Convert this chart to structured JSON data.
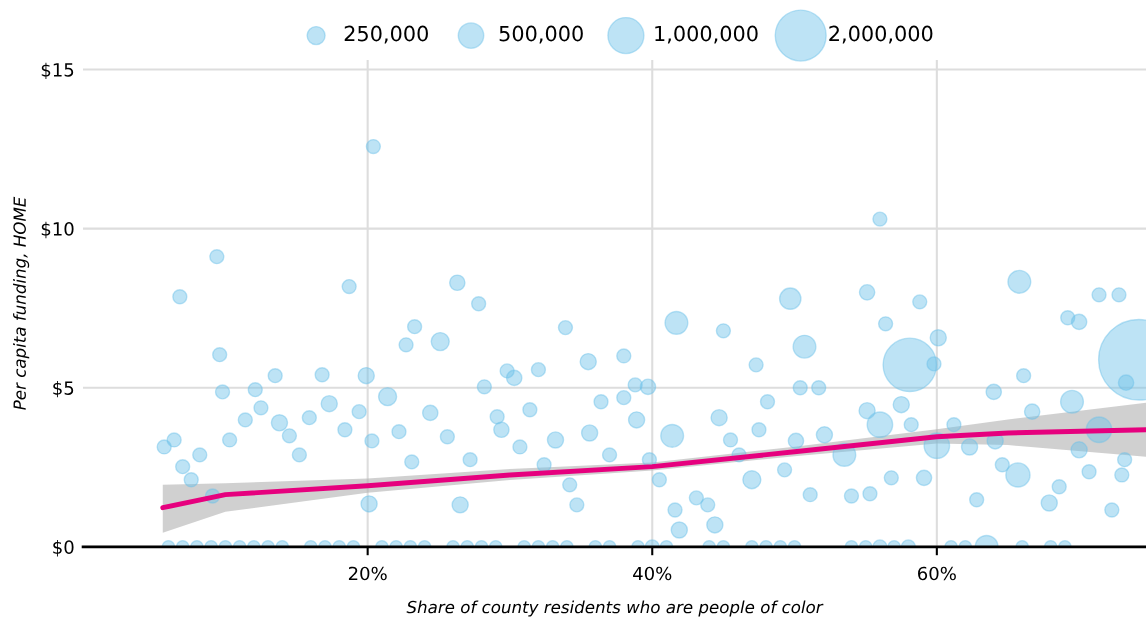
{
  "chart_data": {
    "type": "bubble",
    "xlabel": "Share of county residents who are people of color",
    "ylabel": "Per capita funding, HOME",
    "xlim": [
      0,
      74.7
    ],
    "ylim": [
      0,
      15.3
    ],
    "xticks": [
      {
        "value": 20,
        "label": "20%"
      },
      {
        "value": 40,
        "label": "40%"
      },
      {
        "value": 60,
        "label": "60%"
      }
    ],
    "yticks": [
      {
        "value": 0,
        "label": "$0"
      },
      {
        "value": 5,
        "label": "$5"
      },
      {
        "value": 10,
        "label": "$10"
      },
      {
        "value": 15,
        "label": "$15"
      }
    ],
    "grid": true,
    "size_legend": [
      {
        "value": 250000,
        "label": "250,000"
      },
      {
        "value": 500000,
        "label": "500,000"
      },
      {
        "value": 1000000,
        "label": "1,000,000"
      },
      {
        "value": 2000000,
        "label": "2,000,000"
      }
    ],
    "series": [
      {
        "color": "#6cc0e8",
        "x": [
          20.4,
          9.4,
          56.0,
          6.8,
          18.7,
          26.3,
          27.8,
          9.6,
          23.3,
          22.7,
          25.1,
          33.9,
          41.7,
          45.0,
          49.7,
          50.7,
          55.1,
          65.8,
          58.8,
          56.4,
          69.2,
          70.0,
          71.4,
          72.8,
          58.1,
          60.1,
          74.2,
          9.8,
          12.1,
          16.8,
          19.9,
          13.5,
          29.8,
          30.3,
          32.0,
          35.5,
          38.0,
          38.8,
          39.7,
          47.3,
          50.4,
          51.7,
          59.8,
          64.0,
          66.1,
          73.3,
          5.7,
          6.4,
          7.0,
          8.2,
          7.6,
          9.1,
          10.3,
          11.4,
          12.5,
          13.8,
          14.5,
          15.2,
          15.9,
          17.3,
          18.4,
          19.4,
          20.3,
          20.1,
          21.4,
          22.2,
          23.1,
          24.4,
          25.6,
          26.5,
          27.2,
          28.2,
          29.1,
          29.4,
          30.7,
          31.4,
          32.4,
          33.2,
          34.2,
          34.7,
          35.6,
          36.4,
          37.0,
          38.0,
          38.9,
          39.8,
          40.5,
          41.4,
          41.6,
          41.9,
          43.1,
          43.9,
          44.4,
          44.7,
          45.5,
          46.1,
          47.0,
          47.5,
          48.1,
          49.3,
          50.1,
          51.1,
          52.1,
          53.5,
          54.0,
          55.1,
          56.0,
          56.8,
          55.3,
          57.5,
          58.2,
          59.1,
          60.0,
          61.2,
          62.3,
          62.8,
          64.1,
          64.6,
          65.7,
          66.7,
          67.9,
          68.6,
          69.5,
          70.0,
          70.7,
          71.4,
          72.3,
          73.0,
          73.2,
          6,
          7,
          8,
          9,
          10,
          11,
          12,
          13,
          14,
          16,
          17,
          18,
          19,
          21,
          22,
          23,
          24,
          26,
          27,
          28,
          29,
          31,
          32,
          33,
          34,
          36,
          37,
          39,
          40,
          41,
          44,
          45,
          47,
          48,
          49,
          50,
          54,
          55,
          56,
          57,
          58,
          61,
          62,
          63.5,
          66,
          68,
          69
        ],
        "values": [
          12.58,
          9.12,
          10.3,
          7.86,
          8.18,
          8.3,
          7.64,
          6.04,
          6.92,
          6.35,
          6.45,
          6.89,
          7.04,
          6.79,
          7.8,
          6.29,
          8.0,
          8.33,
          7.7,
          7.01,
          7.2,
          7.07,
          7.92,
          7.92,
          5.72,
          6.57,
          5.88,
          4.87,
          4.94,
          5.41,
          5.38,
          5.38,
          5.53,
          5.31,
          5.57,
          5.82,
          6.0,
          5.09,
          5.03,
          5.72,
          5.0,
          5.0,
          5.75,
          4.87,
          5.38,
          5.16,
          3.14,
          3.36,
          2.52,
          2.89,
          2.11,
          1.6,
          3.36,
          3.99,
          4.37,
          3.9,
          3.49,
          2.89,
          4.06,
          4.5,
          3.68,
          4.25,
          3.33,
          1.35,
          4.72,
          3.62,
          2.67,
          4.21,
          3.46,
          1.32,
          2.74,
          5.03,
          4.09,
          3.68,
          3.14,
          4.31,
          2.58,
          3.36,
          1.95,
          1.32,
          3.58,
          4.56,
          2.89,
          4.69,
          3.99,
          2.74,
          2.11,
          3.49,
          1.16,
          0.53,
          1.54,
          1.32,
          0.69,
          4.06,
          3.36,
          2.89,
          2.11,
          3.68,
          4.56,
          2.42,
          3.33,
          1.64,
          3.52,
          2.89,
          1.6,
          4.28,
          3.84,
          2.17,
          1.67,
          4.47,
          3.84,
          2.17,
          3.18,
          3.84,
          3.14,
          1.48,
          3.33,
          2.58,
          2.26,
          4.25,
          1.38,
          1.89,
          4.56,
          3.05,
          2.36,
          3.68,
          1.16,
          2.26,
          2.74,
          0,
          0,
          0,
          0,
          0,
          0,
          0,
          0,
          0,
          0,
          0,
          0,
          0,
          0,
          0,
          0,
          0,
          0,
          0,
          0,
          0,
          0,
          0,
          0,
          0,
          0,
          0,
          0,
          0,
          0,
          0,
          0,
          0,
          0,
          0,
          0,
          0,
          0,
          0,
          0,
          0,
          0,
          0,
          0,
          0,
          0,
          0
        ],
        "sizes": [
          150000,
          150000,
          150000,
          150000,
          150000,
          180000,
          150000,
          150000,
          150000,
          150000,
          250000,
          150000,
          400000,
          150000,
          350000,
          400000,
          180000,
          400000,
          150000,
          150000,
          150000,
          180000,
          150000,
          150000,
          2200000,
          200000,
          5000000,
          150000,
          150000,
          150000,
          200000,
          150000,
          150000,
          180000,
          150000,
          200000,
          150000,
          150000,
          180000,
          150000,
          150000,
          150000,
          150000,
          180000,
          150000,
          180000,
          150000,
          150000,
          150000,
          150000,
          150000,
          150000,
          150000,
          150000,
          150000,
          200000,
          150000,
          150000,
          150000,
          200000,
          150000,
          150000,
          150000,
          200000,
          250000,
          150000,
          150000,
          180000,
          150000,
          200000,
          150000,
          150000,
          150000,
          180000,
          150000,
          150000,
          150000,
          200000,
          150000,
          150000,
          200000,
          150000,
          150000,
          150000,
          200000,
          150000,
          150000,
          400000,
          150000,
          200000,
          150000,
          150000,
          200000,
          200000,
          150000,
          150000,
          250000,
          150000,
          150000,
          150000,
          180000,
          150000,
          200000,
          400000,
          150000,
          200000,
          500000,
          150000,
          150000,
          200000,
          150000,
          180000,
          500000,
          150000,
          200000,
          150000,
          200000,
          150000,
          450000,
          180000,
          200000,
          150000,
          400000,
          200000,
          150000,
          500000,
          150000,
          150000,
          150000,
          120000,
          120000,
          120000,
          120000,
          120000,
          120000,
          120000,
          120000,
          120000,
          120000,
          120000,
          120000,
          120000,
          120000,
          120000,
          120000,
          120000,
          120000,
          120000,
          120000,
          120000,
          120000,
          120000,
          120000,
          120000,
          120000,
          120000,
          120000,
          150000,
          120000,
          120000,
          120000,
          120000,
          120000,
          120000,
          120000,
          120000,
          120000,
          150000,
          120000,
          150000,
          120000,
          120000,
          400000,
          120000,
          120000,
          120000
        ]
      },
      {
        "type": "line",
        "color": "#e6007e",
        "x": [
          5.6,
          10,
          20,
          30,
          40,
          50,
          60,
          65,
          74.7
        ],
        "values": [
          1.23,
          1.64,
          1.92,
          2.26,
          2.52,
          2.99,
          3.46,
          3.58,
          3.68
        ],
        "lower": [
          0.44,
          1.1,
          1.7,
          2.1,
          2.4,
          2.85,
          3.25,
          3.2,
          2.83
        ],
        "upper": [
          1.95,
          2.0,
          2.15,
          2.45,
          2.65,
          3.15,
          3.7,
          4.0,
          4.53
        ]
      }
    ]
  }
}
